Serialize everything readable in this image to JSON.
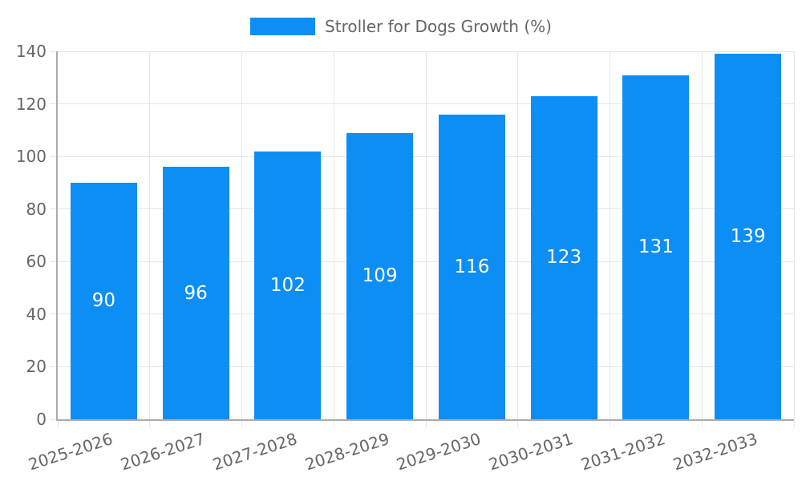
{
  "legend": {
    "label": "Stroller for Dogs Growth (%)"
  },
  "chart_data": {
    "type": "bar",
    "title": "",
    "legend_position": "top",
    "categories": [
      "2025-2026",
      "2026-2027",
      "2027-2028",
      "2028-2029",
      "2029-2030",
      "2030-2031",
      "2031-2032",
      "2032-2033"
    ],
    "series": [
      {
        "name": "Stroller for Dogs Growth (%)",
        "values": [
          90,
          96,
          102,
          109,
          116,
          123,
          131,
          139
        ]
      }
    ],
    "xlabel": "",
    "ylabel": "",
    "ylim": [
      0,
      140
    ],
    "yticks": [
      0,
      20,
      40,
      60,
      80,
      100,
      120,
      140
    ],
    "grid": true,
    "bar_color": "#0d8ef4",
    "value_labels_shown": true,
    "value_label_color": "#ffffff"
  },
  "style": {
    "grid_color": "#e6e6e6",
    "axis_color": "#ababab",
    "text_color": "#666666",
    "background": "#ffffff"
  }
}
